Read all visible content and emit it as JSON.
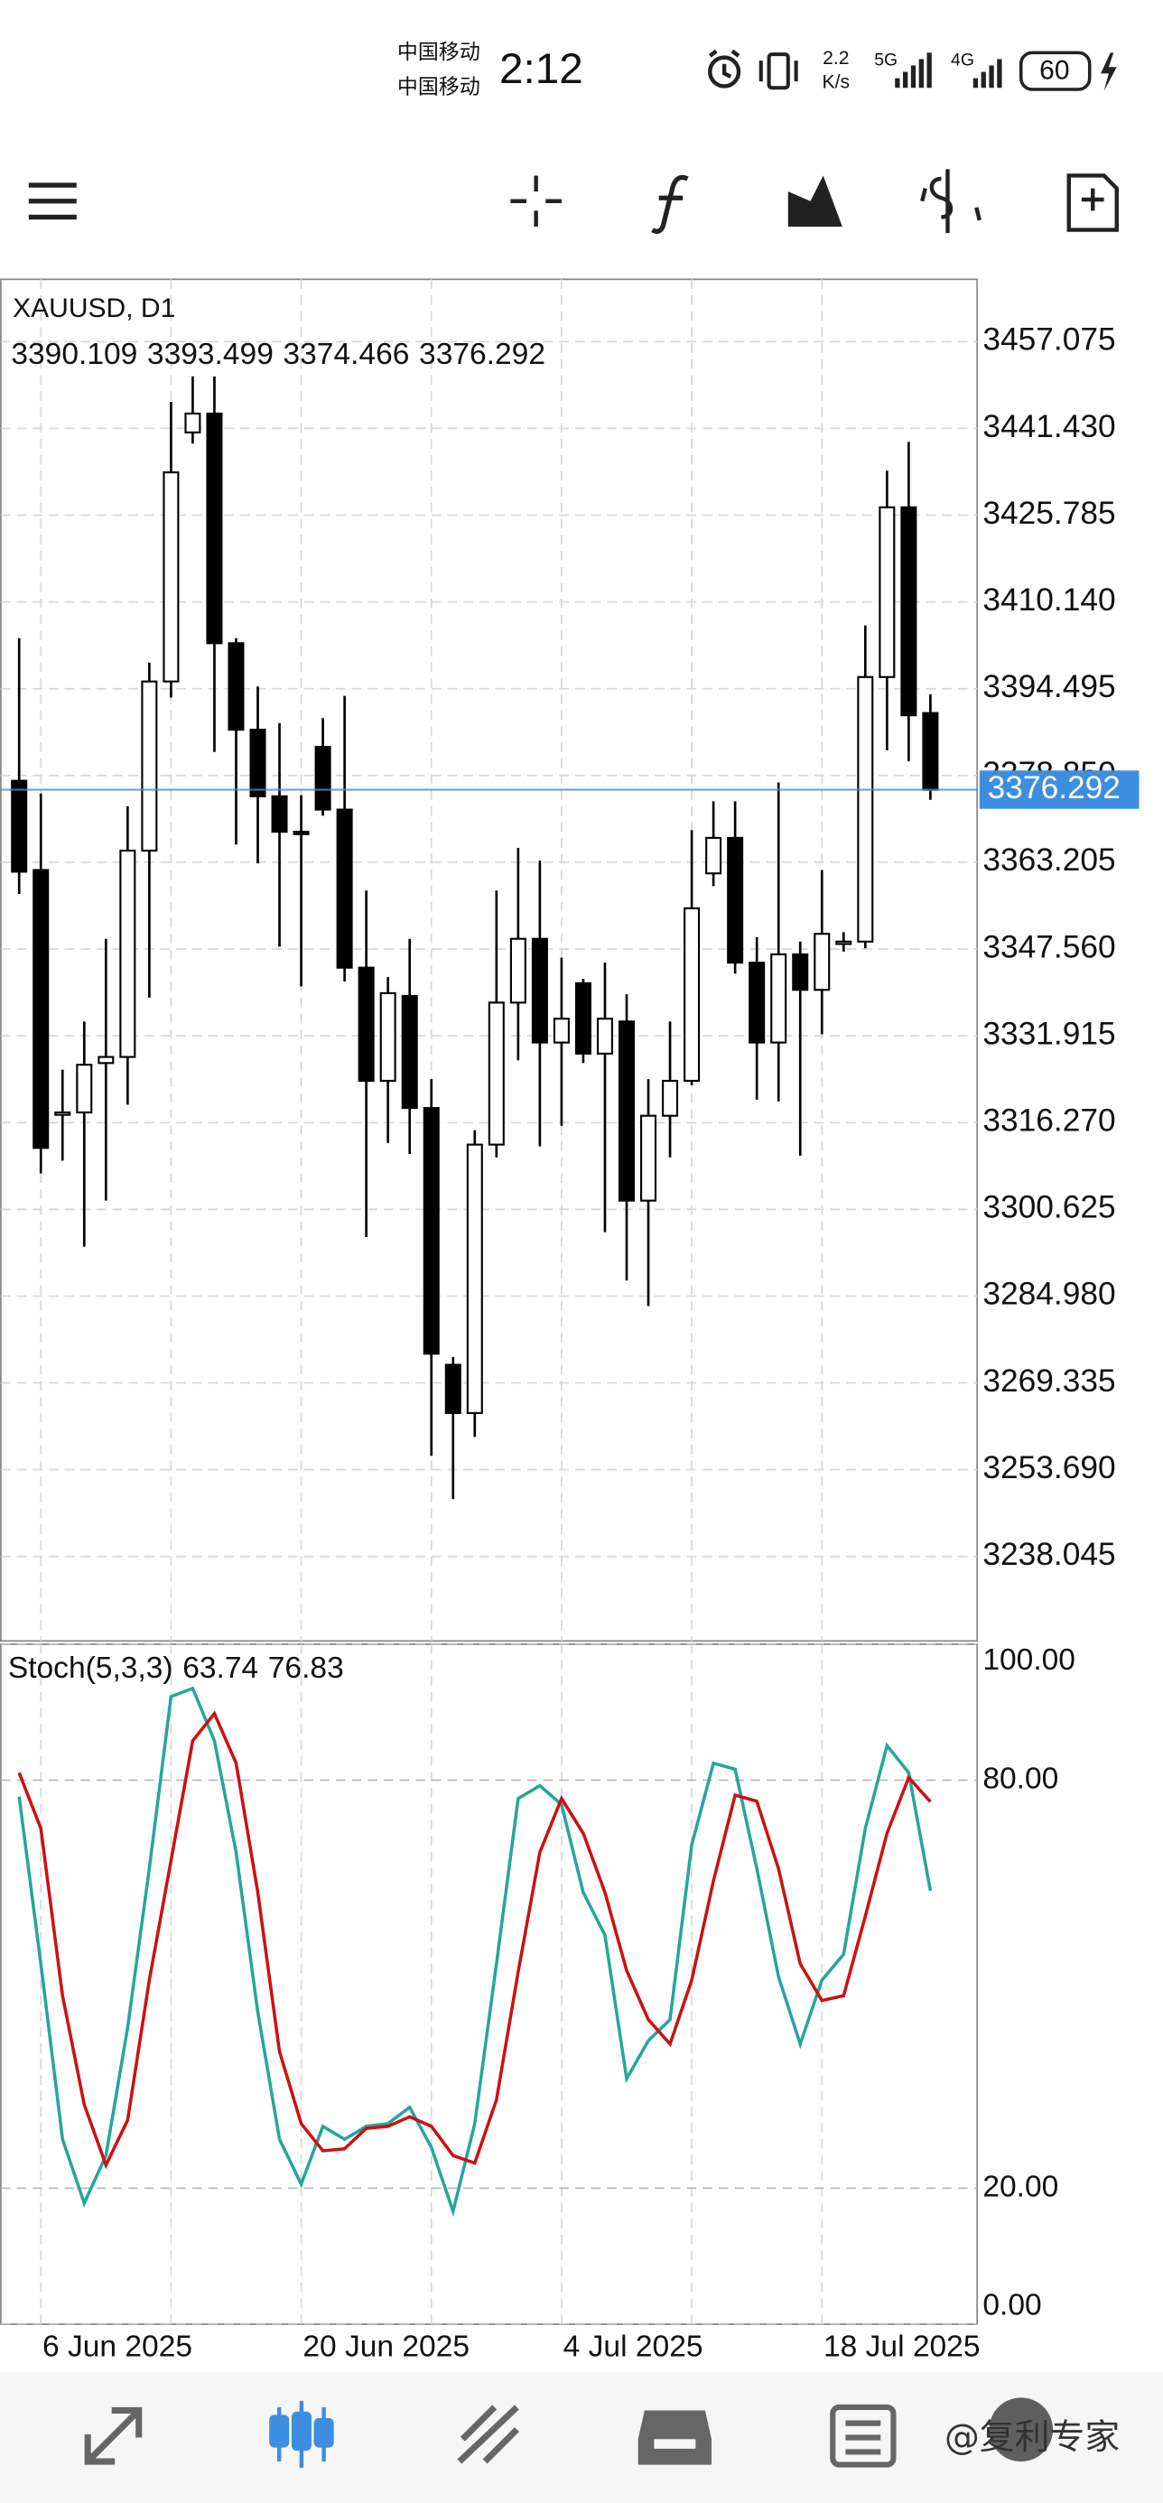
{
  "status_bar": {
    "carrier_1": "中国移动",
    "carrier_2": "中国移动",
    "time": "2:12",
    "speed": "2.2",
    "speed_unit": "K/s",
    "network_1": "5G",
    "network_2": "4G",
    "battery": "60"
  },
  "watermark": "@复利专家",
  "chart_data": [
    {
      "type": "candlestick",
      "title": "XAUUSD, D1",
      "open": [
        3377.9,
        3361.8,
        3317.8,
        3318.1,
        3327.0,
        3328.1,
        3365.3,
        3395.8,
        3440.7,
        3444.1,
        3402.7,
        3387.1,
        3375.1,
        3368.7,
        3384.0,
        3372.7,
        3344.2,
        3323.8,
        3339.1,
        3318.9,
        3272.6,
        3263.9,
        3312.3,
        3337.9,
        3349.4,
        3330.7,
        3341.4,
        3328.7,
        3334.5,
        3302.2,
        3317.5,
        3323.8,
        3361.2,
        3367.6,
        3345.1,
        3330.7,
        3346.6,
        3340.2,
        3348.9,
        3348.9,
        3396.6,
        3427.2,
        3390.109
      ],
      "high": [
        3403.6,
        3375.6,
        3325.8,
        3334.5,
        3349.4,
        3373.3,
        3399.2,
        3446.2,
        3450.8,
        3450.8,
        3403.6,
        3394.9,
        3388.3,
        3375.3,
        3389.2,
        3393.2,
        3358.1,
        3342.5,
        3349.4,
        3324.1,
        3274.0,
        3314.9,
        3358.1,
        3365.8,
        3363.5,
        3346.0,
        3342.2,
        3345.1,
        3339.4,
        3324.1,
        3334.5,
        3369.0,
        3374.2,
        3374.2,
        3349.7,
        3377.6,
        3348.9,
        3361.8,
        3350.6,
        3405.9,
        3433.8,
        3439.0,
        3393.499
      ],
      "low": [
        3357.5,
        3307.1,
        3309.4,
        3293.9,
        3302.2,
        3319.5,
        3338.8,
        3392.9,
        3438.7,
        3383.1,
        3366.4,
        3363.0,
        3348.0,
        3340.8,
        3371.6,
        3341.7,
        3295.6,
        3312.6,
        3310.6,
        3256.2,
        3248.4,
        3259.6,
        3310.0,
        3327.5,
        3312.0,
        3315.7,
        3327.0,
        3296.5,
        3287.8,
        3283.2,
        3310.0,
        3323.0,
        3358.9,
        3343.1,
        3320.4,
        3320.1,
        3310.3,
        3332.2,
        3347.1,
        3347.7,
        3383.4,
        3381.4,
        3374.466
      ],
      "close": [
        3361.5,
        3311.7,
        3318.1,
        3326.7,
        3328.1,
        3365.3,
        3395.8,
        3433.5,
        3444.1,
        3402.7,
        3387.1,
        3375.1,
        3368.7,
        3368.4,
        3372.7,
        3344.2,
        3323.8,
        3339.6,
        3318.9,
        3274.6,
        3263.9,
        3312.3,
        3337.9,
        3349.4,
        3330.7,
        3335.0,
        3328.7,
        3335.0,
        3302.2,
        3317.5,
        3323.8,
        3354.9,
        3367.6,
        3345.1,
        3330.7,
        3346.6,
        3340.2,
        3350.3,
        3348.9,
        3396.6,
        3427.2,
        3389.7,
        3376.292
      ],
      "ylim": [
        3222.8,
        3468.3
      ],
      "yticks": [
        {
          "value": 3457.075,
          "label": "3457.075"
        },
        {
          "value": 3441.43,
          "label": "3441.430"
        },
        {
          "value": 3425.785,
          "label": "3425.785"
        },
        {
          "value": 3410.14,
          "label": "3410.140"
        },
        {
          "value": 3394.495,
          "label": "3394.495"
        },
        {
          "value": 3378.85,
          "label": "3378.850"
        },
        {
          "value": 3363.205,
          "label": "3363.205"
        },
        {
          "value": 3347.56,
          "label": "3347.560"
        },
        {
          "value": 3331.915,
          "label": "3331.915"
        },
        {
          "value": 3316.27,
          "label": "3316.270"
        },
        {
          "value": 3300.625,
          "label": "3300.625"
        },
        {
          "value": 3284.98,
          "label": "3284.980"
        },
        {
          "value": 3269.335,
          "label": "3269.335"
        },
        {
          "value": 3253.69,
          "label": "3253.690"
        },
        {
          "value": 3238.045,
          "label": "3238.045"
        }
      ],
      "grid": true,
      "up_color": "#ffffff",
      "down_color": "#000000",
      "price_line_color": "#3d8ee0"
    },
    {
      "type": "line",
      "title": "Stoch(5,3,3)",
      "categories": [
        null,
        "6 Jun 2025",
        null,
        null,
        null,
        null,
        null,
        null,
        null,
        null,
        null,
        null,
        null,
        "20 Jun 2025",
        null,
        null,
        null,
        null,
        null,
        null,
        null,
        null,
        null,
        null,
        null,
        "4 Jul 2025",
        null,
        null,
        null,
        null,
        null,
        null,
        null,
        null,
        null,
        null,
        null,
        "18 Jul 2025",
        null,
        null,
        null,
        null,
        null
      ],
      "series": [
        {
          "color": "#26a69a",
          "values": [
            77.6,
            53.0,
            27.2,
            17.8,
            24.8,
            43.6,
            67.0,
            92.3,
            93.5,
            85.8,
            69.4,
            45.9,
            27.2,
            20.6,
            29.1,
            27.2,
            29.1,
            29.5,
            31.9,
            26.0,
            16.6,
            29.5,
            53.0,
            77.3,
            79.2,
            76.4,
            63.5,
            57.2,
            36.1,
            41.7,
            44.8,
            70.5,
            82.5,
            81.6,
            67.0,
            51.1,
            41.2,
            50.6,
            54.4,
            72.9,
            85.1,
            81.1,
            63.74
          ]
        },
        {
          "color": "#cc1111",
          "values": [
            81.1,
            72.9,
            48.3,
            32.3,
            23.4,
            30.0,
            50.6,
            68.2,
            85.8,
            89.8,
            82.5,
            63.5,
            40.1,
            29.5,
            25.5,
            25.8,
            28.8,
            29.1,
            30.5,
            29.1,
            24.8,
            23.7,
            33.0,
            51.8,
            69.4,
            77.3,
            72.2,
            63.5,
            52.0,
            44.8,
            41.2,
            50.6,
            65.2,
            77.8,
            76.9,
            67.0,
            53.0,
            47.6,
            48.3,
            60.0,
            72.2,
            80.4,
            76.83
          ]
        }
      ],
      "ylim": [
        0,
        100
      ],
      "yticks": [
        {
          "value": 0,
          "label": "0.00"
        },
        {
          "value": 20,
          "label": "20.00"
        },
        {
          "value": 80,
          "label": "80.00"
        },
        {
          "value": 100,
          "label": "100.00"
        }
      ],
      "grid": true
    }
  ]
}
